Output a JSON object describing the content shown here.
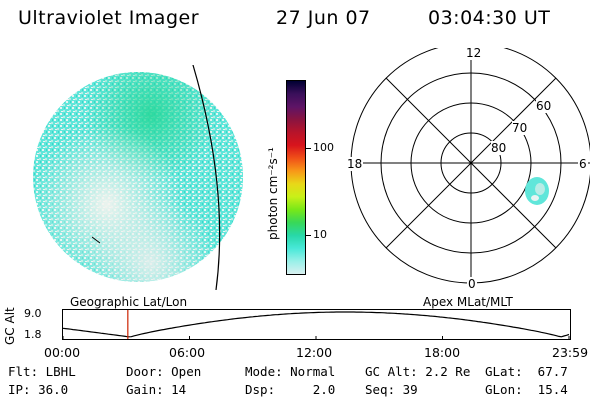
{
  "header": {
    "instrument": "Ultraviolet Imager",
    "date": "27 Jun 07",
    "time": "03:04:30 UT"
  },
  "colorbar": {
    "label": "photon cm⁻²s⁻¹",
    "ticks": [
      "100",
      "10"
    ],
    "ramp_colors": [
      "#000033",
      "#3a0f5a",
      "#5e1466",
      "#8a1440",
      "#b8142a",
      "#d8141c",
      "#f05018",
      "#f89818",
      "#e8d818",
      "#c8f018",
      "#78e818",
      "#38d858",
      "#28d8a8",
      "#48e8d8",
      "#98f0e8",
      "#d8f0f0"
    ]
  },
  "polar": {
    "top_label": "12",
    "bottom_label": "0",
    "left_label": "18",
    "right_label": "6",
    "ring_labels": [
      "60",
      "70",
      "80"
    ]
  },
  "timeline": {
    "axis_title": "GC Alt",
    "y_top": "9.0",
    "y_bottom": "1.8",
    "left_caption": "Geographic Lat/Lon",
    "right_caption": "Apex MLat/MLT",
    "x_ticks": [
      "00:00",
      "06:00",
      "12:00",
      "18:00",
      "23:59"
    ],
    "current_time_hours": 3.075
  },
  "footer": {
    "flt": "Flt: LBHL",
    "ip": "IP: 36.0",
    "door": "Door: Open",
    "gain": "Gain: 14",
    "mode": "Mode: Normal",
    "dsp": "Dsp:     2.0",
    "gcalt": "GC Alt: 2.2 Re",
    "seq": "Seq: 39",
    "glat": "GLat:  67.7",
    "glon": "GLon:  15.4"
  }
}
